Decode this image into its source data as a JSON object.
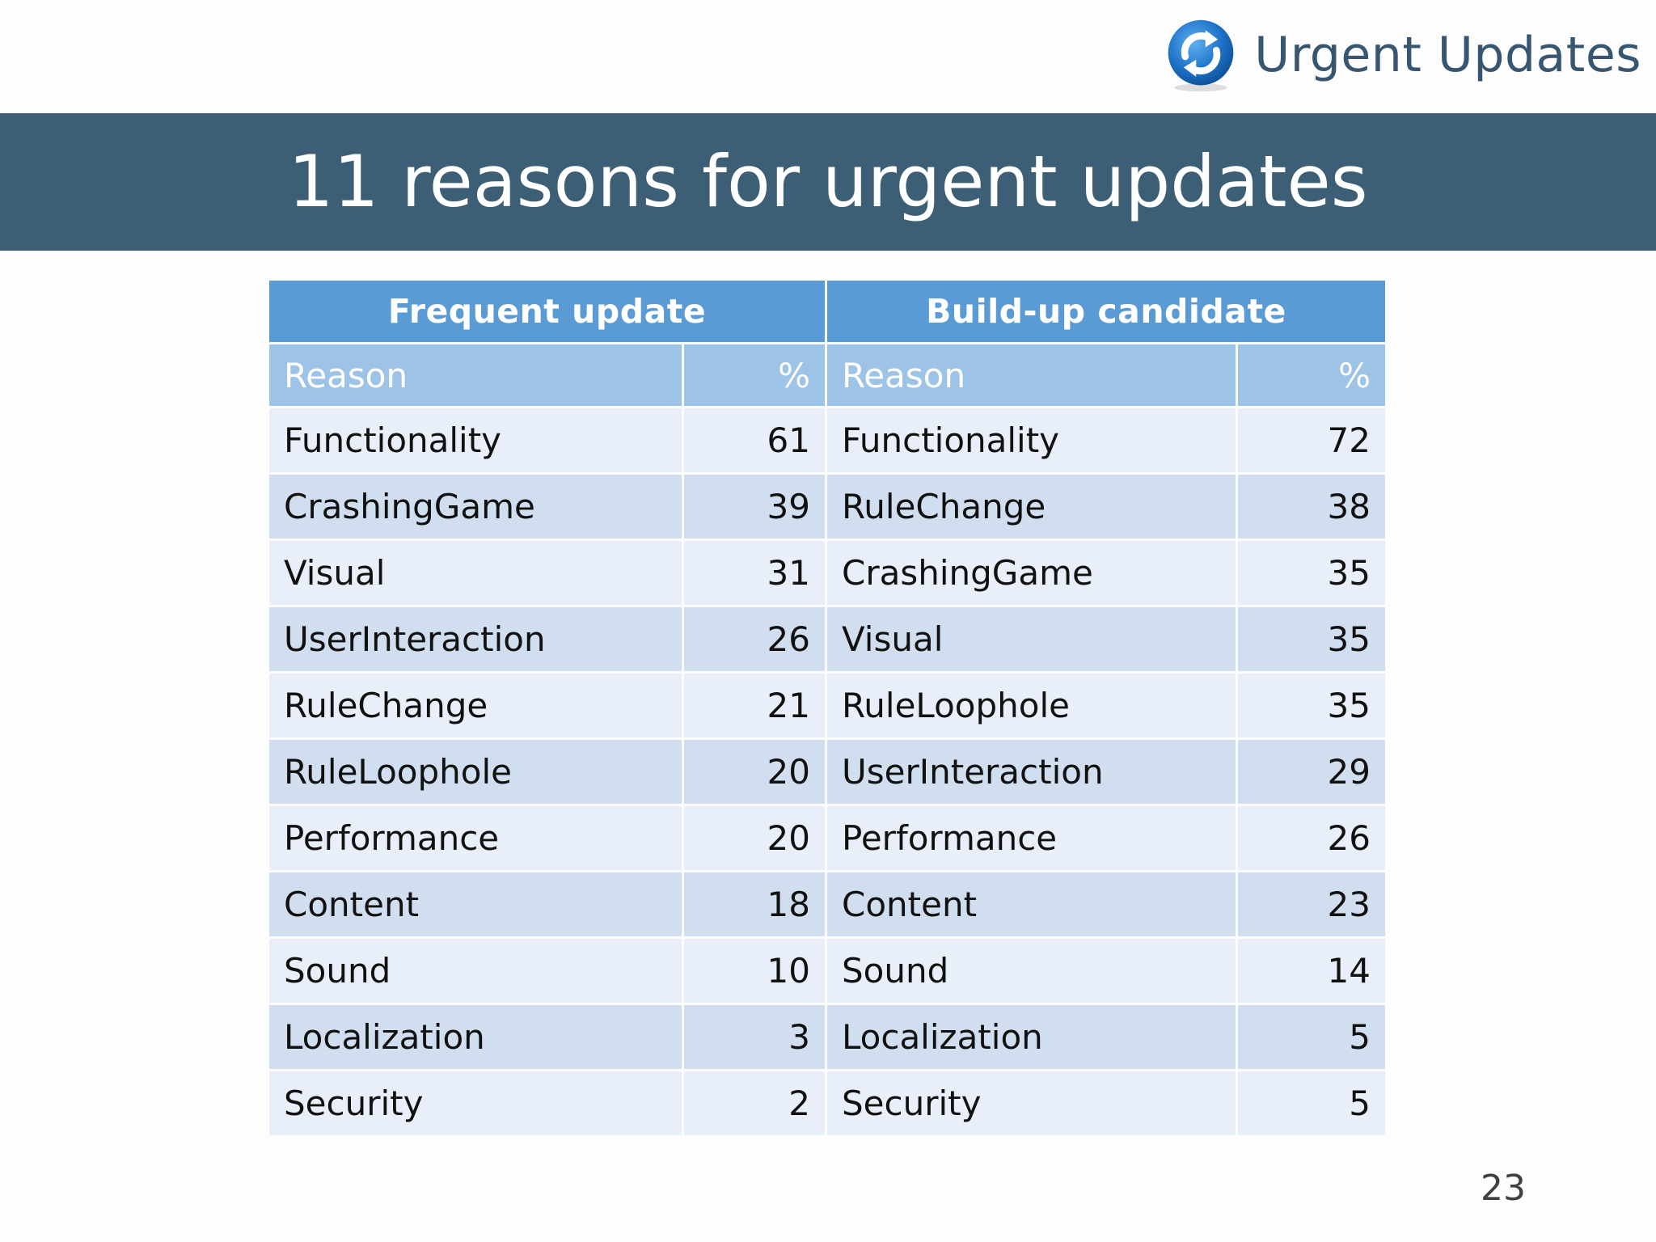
{
  "logo": {
    "text": "Urgent Updates",
    "icon": "refresh-circle-icon",
    "icon_color": "#1e73c8"
  },
  "slide": {
    "title": "11 reasons for urgent updates",
    "page_number": "23"
  },
  "colors": {
    "title_band": "#3d5f76",
    "group_header": "#5b9bd5",
    "sub_header": "#9dc3e6",
    "row_light": "#e9eff8",
    "row_dark": "#d0deef"
  },
  "table": {
    "groups": [
      "Frequent update",
      "Build-up candidate"
    ],
    "columns": [
      "Reason",
      "%",
      "Reason",
      "%"
    ],
    "rows": [
      [
        "Functionality",
        "61",
        "Functionality",
        "72"
      ],
      [
        "CrashingGame",
        "39",
        "RuleChange",
        "38"
      ],
      [
        "Visual",
        "31",
        "CrashingGame",
        "35"
      ],
      [
        "UserInteraction",
        "26",
        "Visual",
        "35"
      ],
      [
        "RuleChange",
        "21",
        "RuleLoophole",
        "35"
      ],
      [
        "RuleLoophole",
        "20",
        "UserInteraction",
        "29"
      ],
      [
        "Performance",
        "20",
        "Performance",
        "26"
      ],
      [
        "Content",
        "18",
        "Content",
        "23"
      ],
      [
        "Sound",
        "10",
        "Sound",
        "14"
      ],
      [
        "Localization",
        "3",
        "Localization",
        "5"
      ],
      [
        "Security",
        "2",
        "Security",
        "5"
      ]
    ]
  }
}
